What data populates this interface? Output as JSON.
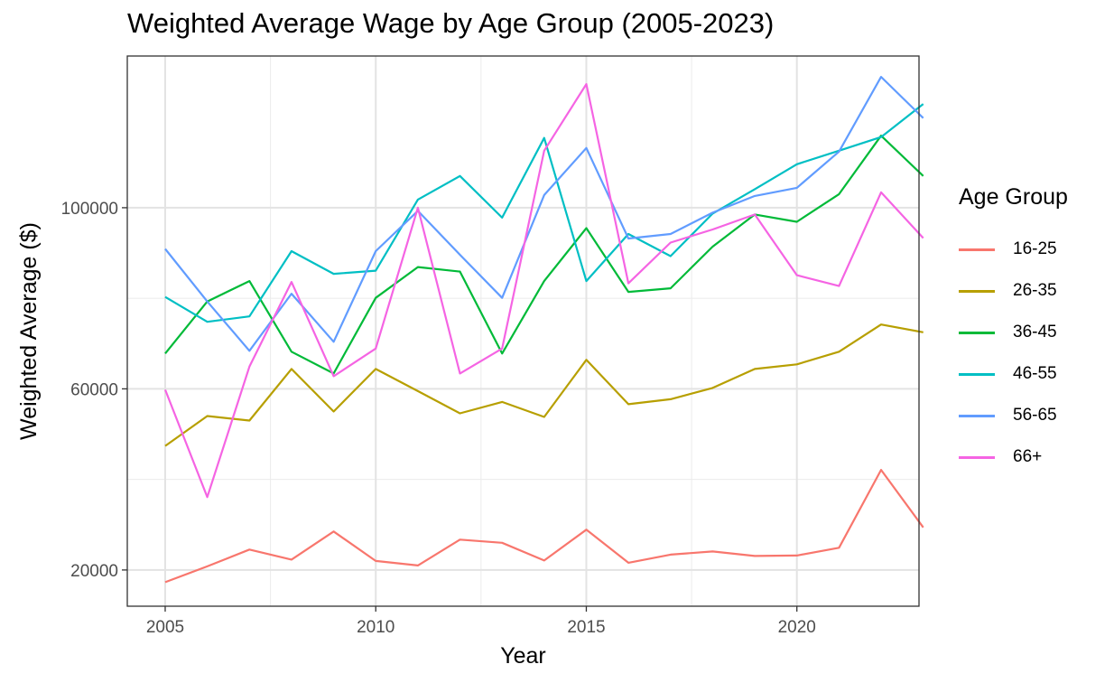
{
  "chart_data": {
    "type": "line",
    "title": "Weighted Average Wage by Age Group (2005-2023)",
    "xlabel": "Year",
    "ylabel": "Weighted Average ($)",
    "xlim": [
      2004.1,
      2022.9
    ],
    "ylim": [
      12000,
      133500
    ],
    "x_ticks": [
      2005,
      2010,
      2015,
      2020
    ],
    "y_ticks": [
      20000,
      60000,
      100000
    ],
    "grid": true,
    "legend_title": "Age Group",
    "legend_position": "right",
    "x": [
      2005,
      2006,
      2007,
      2008,
      2009,
      2010,
      2011,
      2012,
      2013,
      2014,
      2015,
      2016,
      2017,
      2018,
      2019,
      2020,
      2021,
      2022,
      2023
    ],
    "series": [
      {
        "name": "16-25",
        "color": "#F8766D",
        "values": [
          17300,
          20800,
          24500,
          22300,
          28500,
          22000,
          21000,
          26700,
          26000,
          22100,
          28900,
          21600,
          23400,
          24100,
          23100,
          23200,
          24900,
          42100,
          29400
        ]
      },
      {
        "name": "26-35",
        "color": "#B79F00",
        "values": [
          47400,
          54000,
          53000,
          64400,
          55000,
          64400,
          59500,
          54600,
          57100,
          53800,
          66400,
          56600,
          57700,
          60200,
          64400,
          65400,
          68200,
          74200,
          72500
        ]
      },
      {
        "name": "36-45",
        "color": "#00BA38",
        "values": [
          67800,
          79300,
          83800,
          68200,
          63400,
          80100,
          86900,
          85900,
          67800,
          83800,
          95500,
          81400,
          82200,
          91400,
          98500,
          96900,
          103000,
          115900,
          107000
        ]
      },
      {
        "name": "46-55",
        "color": "#00BFC4",
        "values": [
          80300,
          74800,
          76000,
          90400,
          85400,
          86100,
          101800,
          107000,
          97800,
          115400,
          83800,
          94200,
          89300,
          98700,
          104100,
          109600,
          112600,
          115600,
          122900
        ]
      },
      {
        "name": "56-65",
        "color": "#619CFF",
        "values": [
          90900,
          79300,
          68400,
          81000,
          70400,
          90400,
          99300,
          89600,
          80100,
          102800,
          113200,
          93200,
          94200,
          98900,
          102600,
          104400,
          112400,
          128900,
          119800
        ]
      },
      {
        "name": "66+",
        "color": "#F564E3",
        "values": [
          59800,
          36100,
          64900,
          83600,
          62800,
          68900,
          100000,
          63400,
          68900,
          112600,
          127300,
          83300,
          92300,
          95200,
          98500,
          85100,
          82700,
          103400,
          93300
        ]
      }
    ]
  }
}
